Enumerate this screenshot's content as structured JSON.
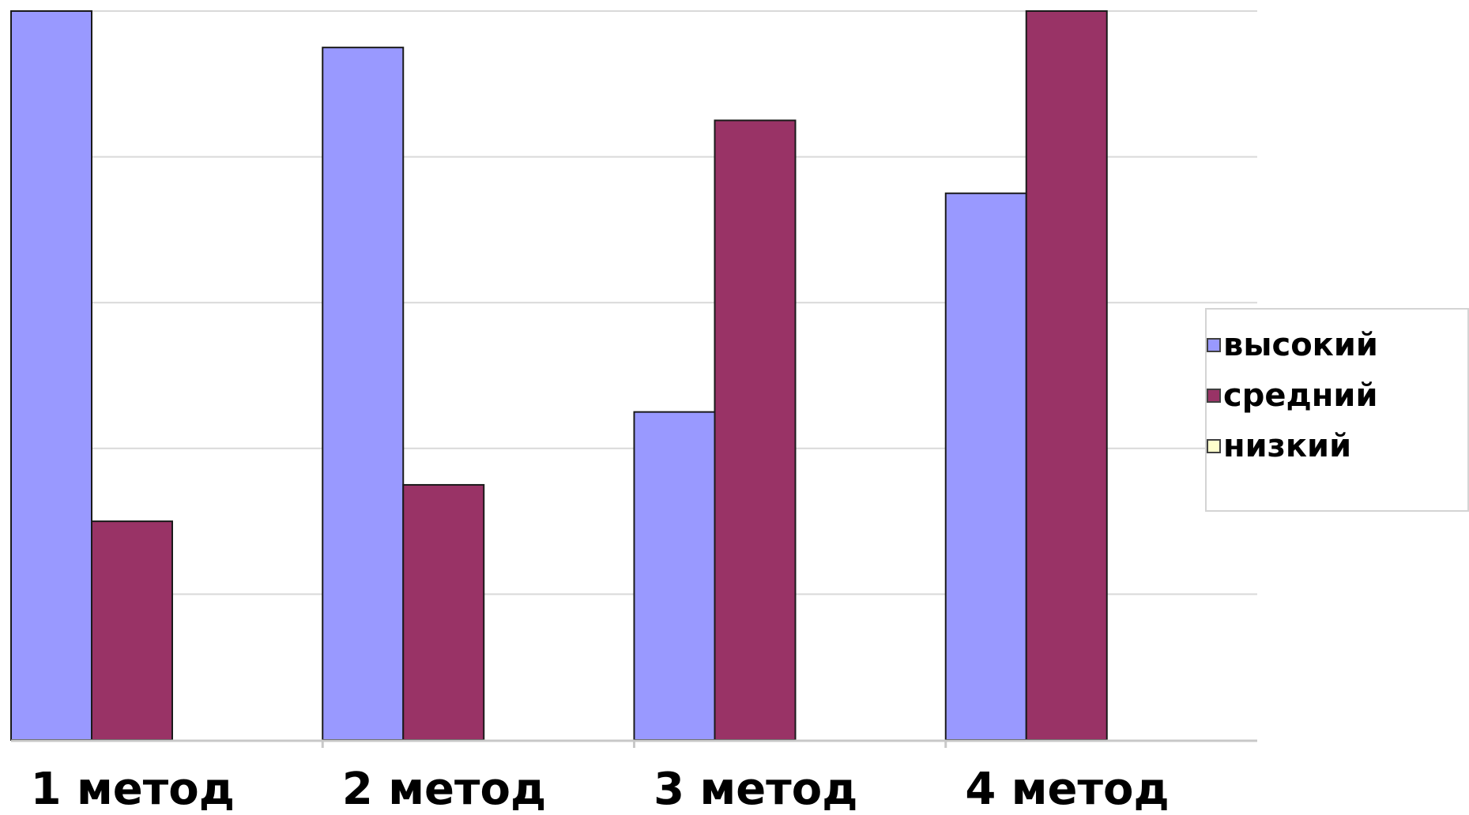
{
  "chart_data": {
    "type": "bar",
    "categories": [
      "1 метод",
      "2 метод",
      "3 метод",
      "4 метод"
    ],
    "series": [
      {
        "name": "высокий",
        "color": "#9999ff",
        "values": [
          100,
          95,
          45,
          75
        ]
      },
      {
        "name": "средний",
        "color": "#993366",
        "values": [
          30,
          35,
          85,
          100
        ]
      },
      {
        "name": "низкий",
        "color": "#ffffcc",
        "values": [
          0,
          0,
          0,
          0
        ]
      }
    ],
    "ylim": [
      0,
      100
    ],
    "grid": true,
    "legend_position": "right"
  }
}
